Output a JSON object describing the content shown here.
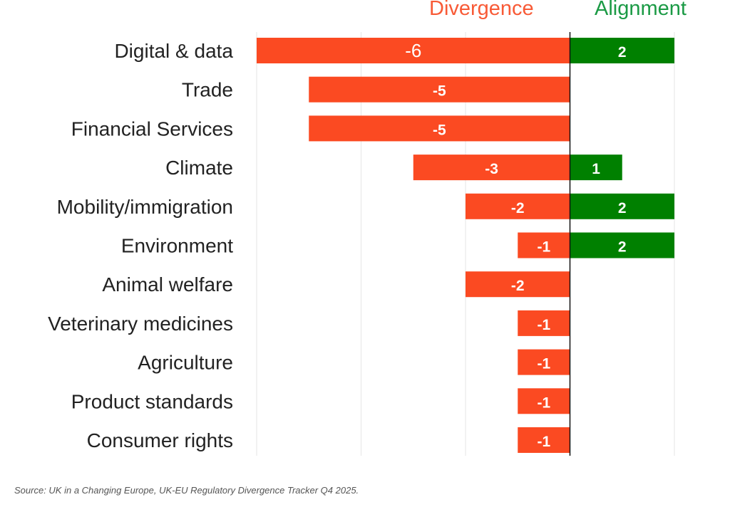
{
  "chart_data": {
    "type": "bar",
    "orientation": "horizontal",
    "diverging": true,
    "categories": [
      "Digital & data",
      "Trade",
      "Financial Services",
      "Climate",
      "Mobility/immigration",
      "Environment",
      "Animal welfare",
      "Veterinary medicines",
      "Agriculture",
      "Product standards",
      "Consumer rights"
    ],
    "series": [
      {
        "name": "Divergence",
        "color": "#fb4a22",
        "values": [
          -6,
          -5,
          -5,
          -3,
          -2,
          -1,
          -2,
          -1,
          -1,
          -1,
          -1
        ],
        "labels": [
          "-6",
          "-5",
          "-5",
          "-3",
          "-2",
          "-1",
          "-2",
          "-1",
          "-1",
          "-1",
          "-1"
        ]
      },
      {
        "name": "Alignment",
        "color": "#008000",
        "values": [
          2,
          0,
          0,
          1,
          2,
          2,
          0,
          0,
          0,
          0,
          0
        ],
        "labels": [
          "2",
          "",
          "",
          "1",
          "2",
          "2",
          "",
          "",
          "",
          "",
          ""
        ]
      }
    ],
    "xlim": [
      -6,
      2
    ],
    "grid_step": 2,
    "grid": true,
    "legend_headers": {
      "divergence": "Divergence",
      "alignment": "Alignment"
    },
    "source": "Source: UK in a Changing Europe, UK-EU Regulatory Divergence Tracker Q4 2025."
  }
}
